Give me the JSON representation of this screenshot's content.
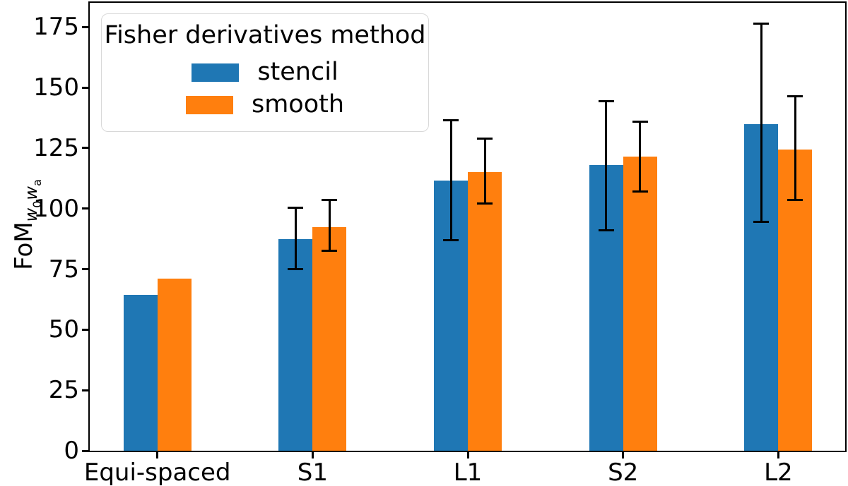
{
  "chart_data": {
    "type": "bar",
    "title": "",
    "ylabel": "FoM_{w0wa}",
    "ylabel_parts": {
      "base": "FoM",
      "w1": "w",
      "s1": "0",
      "w2": "w",
      "s2": "a"
    },
    "xlabel": "",
    "categories": [
      "Equi-spaced",
      "S1",
      "L1",
      "S2",
      "L2"
    ],
    "series": [
      {
        "name": "stencil",
        "color": "#1f77b4",
        "values": [
          64.5,
          87.5,
          111.5,
          118,
          135
        ],
        "error_low": [
          null,
          75,
          87,
          91,
          94.5
        ],
        "error_high": [
          null,
          100.5,
          136.5,
          144.5,
          176.5
        ]
      },
      {
        "name": "smooth",
        "color": "#ff7f0e",
        "values": [
          71,
          92.5,
          115,
          121.5,
          124.5
        ],
        "error_low": [
          null,
          82.5,
          102,
          107,
          103.5
        ],
        "error_high": [
          null,
          103.5,
          129,
          136,
          146.5
        ]
      }
    ],
    "y_ticks": [
      0,
      25,
      50,
      75,
      100,
      125,
      150,
      175
    ],
    "ylim": [
      0,
      185
    ],
    "grid": false,
    "error_bar_color": "#000000",
    "legend_title": "Fisher derivatives method",
    "legend_position": "upper left"
  }
}
